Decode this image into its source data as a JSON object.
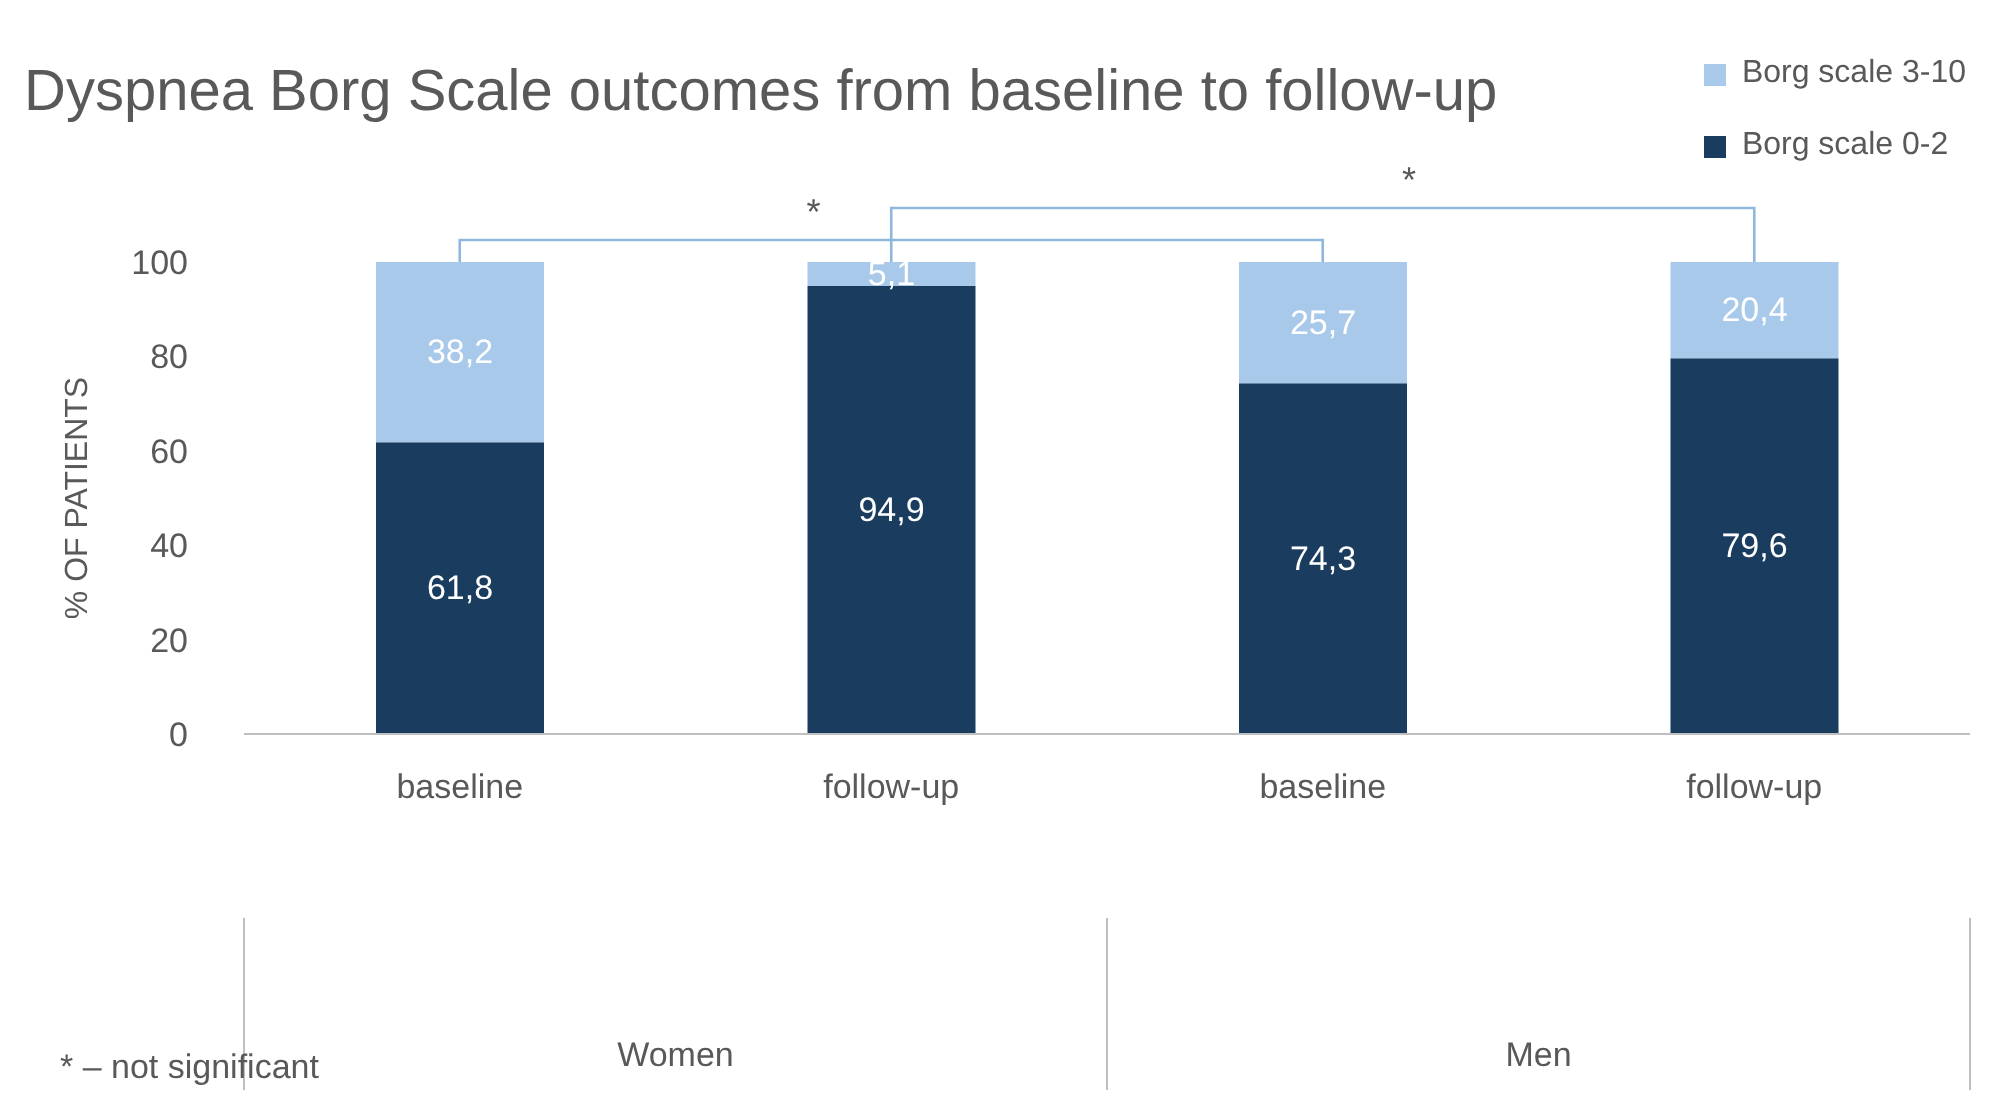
{
  "chart_data": {
    "type": "bar",
    "title": "Dyspnea Borg Scale outcomes from baseline to follow-up",
    "ylabel": "% OF PATIENTS",
    "categories": [
      "baseline",
      "follow-up",
      "baseline",
      "follow-up"
    ],
    "stacked": true,
    "ylim": [
      0,
      100
    ],
    "yticks": [
      0,
      20,
      40,
      60,
      80,
      100
    ],
    "grid": false,
    "legend": "top right",
    "series": [
      {
        "name": "Borg scale 0-2",
        "color": "#1a3d5f",
        "values": [
          61.8,
          94.9,
          74.3,
          79.6
        ],
        "value_labels": [
          "61,8",
          "94,9",
          "74,3",
          "79,6"
        ]
      },
      {
        "name": "Borg scale 3-10",
        "color": "#a9c9eb",
        "values": [
          38.2,
          5.1,
          25.7,
          20.4
        ],
        "value_labels": [
          "38,2",
          "5,1",
          "25,7",
          "20,4"
        ]
      }
    ],
    "annotations": [
      "*",
      "*",
      "* – not significant",
      "Women",
      "Men"
    ]
  }
}
